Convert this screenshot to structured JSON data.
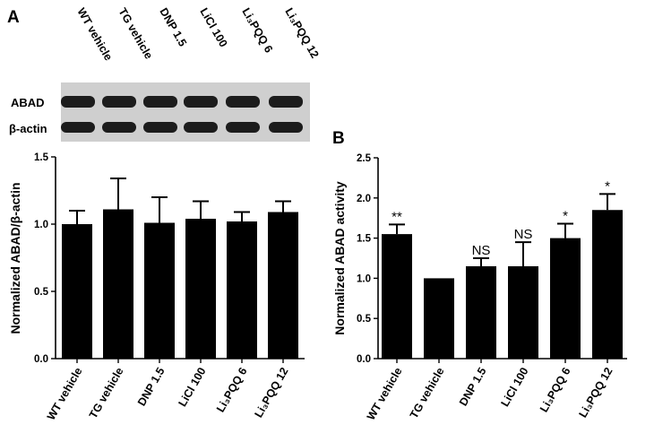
{
  "panel_labels": {
    "a": "A",
    "b": "B"
  },
  "blot": {
    "lane_labels": [
      "WT vehicle",
      "TG vehicle",
      "DNP 1.5",
      "LiCl 100",
      "Li₃PQQ 6",
      "Li₃PQQ 12"
    ],
    "row_labels": [
      "ABAD",
      "β-actin"
    ]
  },
  "chart_data": [
    {
      "type": "bar",
      "panel": "A",
      "categories": [
        "WT vehicle",
        "TG vehicle",
        "DNP 1.5",
        "LiCl 100",
        "Li₃PQQ 6",
        "Li₃PQQ 12"
      ],
      "values": [
        1.0,
        1.11,
        1.01,
        1.04,
        1.02,
        1.09
      ],
      "errors": [
        0.1,
        0.23,
        0.19,
        0.13,
        0.07,
        0.08
      ],
      "annotations": [
        "",
        "",
        "",
        "",
        "",
        ""
      ],
      "ylabel": "Normalized ABAD/β-actin",
      "xlabel": "",
      "ylim": [
        0.0,
        1.5
      ],
      "yticks": [
        "0.0",
        "0.5",
        "1.0",
        "1.5"
      ],
      "bar_color": "#000000",
      "grid": false
    },
    {
      "type": "bar",
      "panel": "B",
      "categories": [
        "WT vehicle",
        "TG vehicle",
        "DNP 1.5",
        "LiCl 100",
        "Li₃PQQ 6",
        "Li₃PQQ 12"
      ],
      "values": [
        1.55,
        1.0,
        1.15,
        1.15,
        1.5,
        1.85
      ],
      "errors": [
        0.12,
        0.0,
        0.1,
        0.3,
        0.18,
        0.2
      ],
      "annotations": [
        "**",
        "",
        "NS",
        "NS",
        "*",
        "*"
      ],
      "ylabel": "Normalized ABAD activity",
      "xlabel": "",
      "ylim": [
        0.0,
        2.5
      ],
      "yticks": [
        "0.0",
        "0.5",
        "1.0",
        "1.5",
        "2.0",
        "2.5"
      ],
      "bar_color": "#000000",
      "grid": false
    }
  ]
}
